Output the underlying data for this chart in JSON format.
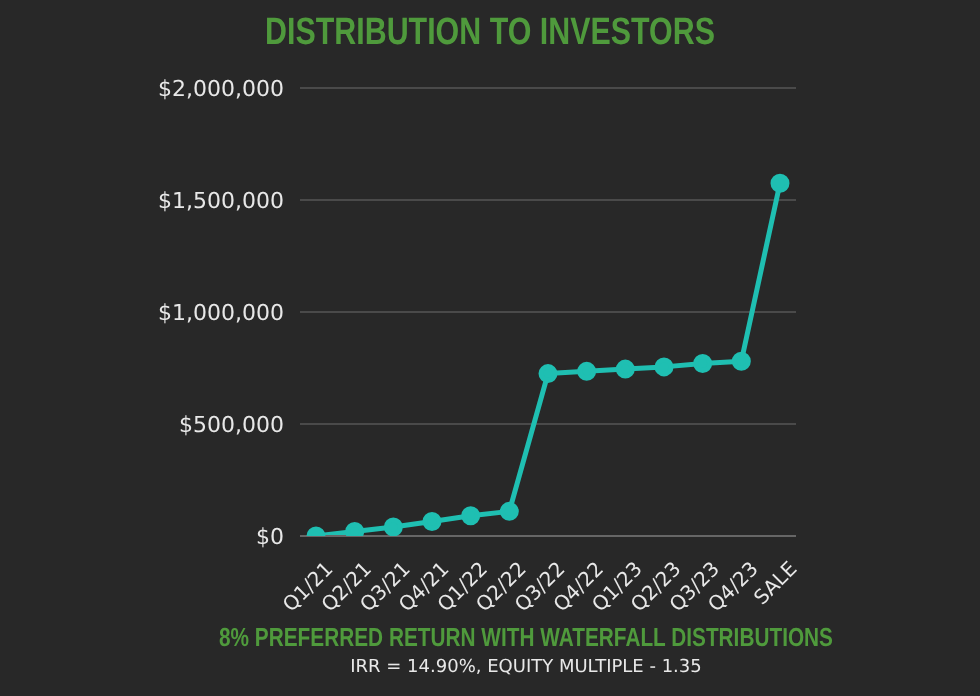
{
  "chart_data": {
    "type": "line",
    "title": "DISTRIBUTION TO INVESTORS",
    "subtitle": "8% PREFERRED RETURN WITH WATERFALL DISTRIBUTIONS",
    "annotations": [
      "IRR = 14.90%, EQUITY MULTIPLE - 1.35"
    ],
    "categories": [
      "Q1/21",
      "Q2/21",
      "Q3/21",
      "Q4/21",
      "Q1/22",
      "Q2/22",
      "Q3/22",
      "Q4/22",
      "Q1/23",
      "Q2/23",
      "Q3/23",
      "Q4/23",
      "SALE"
    ],
    "series": [
      {
        "color": "#1fbfb2",
        "values": [
          0,
          20000,
          40000,
          65000,
          90000,
          110000,
          725000,
          735000,
          745000,
          755000,
          770000,
          780000,
          1575000
        ]
      }
    ],
    "ylim": [
      0,
      2000000
    ],
    "yticks": [
      {
        "value": 0,
        "label": "$0"
      },
      {
        "value": 500000,
        "label": "$500,000"
      },
      {
        "value": 1000000,
        "label": "$1,000,000"
      },
      {
        "value": 1500000,
        "label": "$1,500,000"
      },
      {
        "value": 2000000,
        "label": "$2,000,000"
      }
    ],
    "grid": "y",
    "marker": "circle",
    "line_style": "solid",
    "legend": false
  }
}
